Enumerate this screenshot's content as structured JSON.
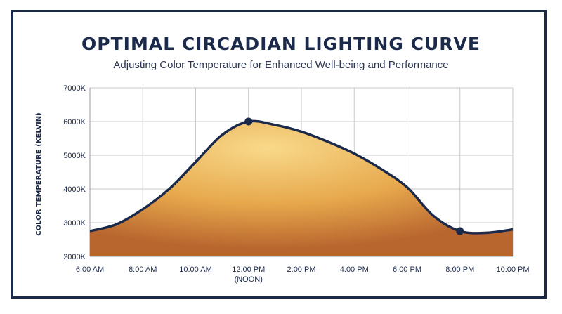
{
  "title": "OPTIMAL CIRCADIAN LIGHTING CURVE",
  "subtitle": "Adjusting Color Temperature for Enhanced Well-being and Performance",
  "colors": {
    "navy": "#1b2a4a",
    "fill_light": "#f8d98a",
    "fill_mid": "#e7a84c",
    "fill_dark": "#b8652e",
    "grid": "#c9c9c9"
  },
  "chart_data": {
    "type": "area",
    "ylabel": "COLOR TEMPERATURE (KELVIN)",
    "xlabel": "",
    "x_ticks": [
      "6:00 AM",
      "8:00 AM",
      "10:00 AM",
      "12:00 PM",
      "2:00 PM",
      "4:00 PM",
      "6:00 PM",
      "8:00 PM",
      "10:00 PM"
    ],
    "x_tick_sublabels": [
      "",
      "",
      "",
      "(NOON)",
      "",
      "",
      "",
      "",
      ""
    ],
    "y_ticks": [
      "2000K",
      "3000K",
      "4000K",
      "5000K",
      "6000K",
      "7000K"
    ],
    "xlim": [
      6,
      22
    ],
    "ylim": [
      2000,
      7000
    ],
    "grid": true,
    "series": [
      {
        "x": [
          6,
          7,
          8,
          9,
          10,
          11,
          12,
          13,
          14,
          15,
          16,
          17,
          18,
          19,
          20,
          21,
          22
        ],
        "y": [
          2750,
          2950,
          3400,
          4000,
          4800,
          5600,
          6000,
          5900,
          5700,
          5400,
          5050,
          4600,
          4050,
          3200,
          2750,
          2700,
          2800
        ]
      }
    ],
    "highlighted_points": [
      {
        "x": 12,
        "y": 6000
      },
      {
        "x": 20,
        "y": 2750
      }
    ]
  }
}
